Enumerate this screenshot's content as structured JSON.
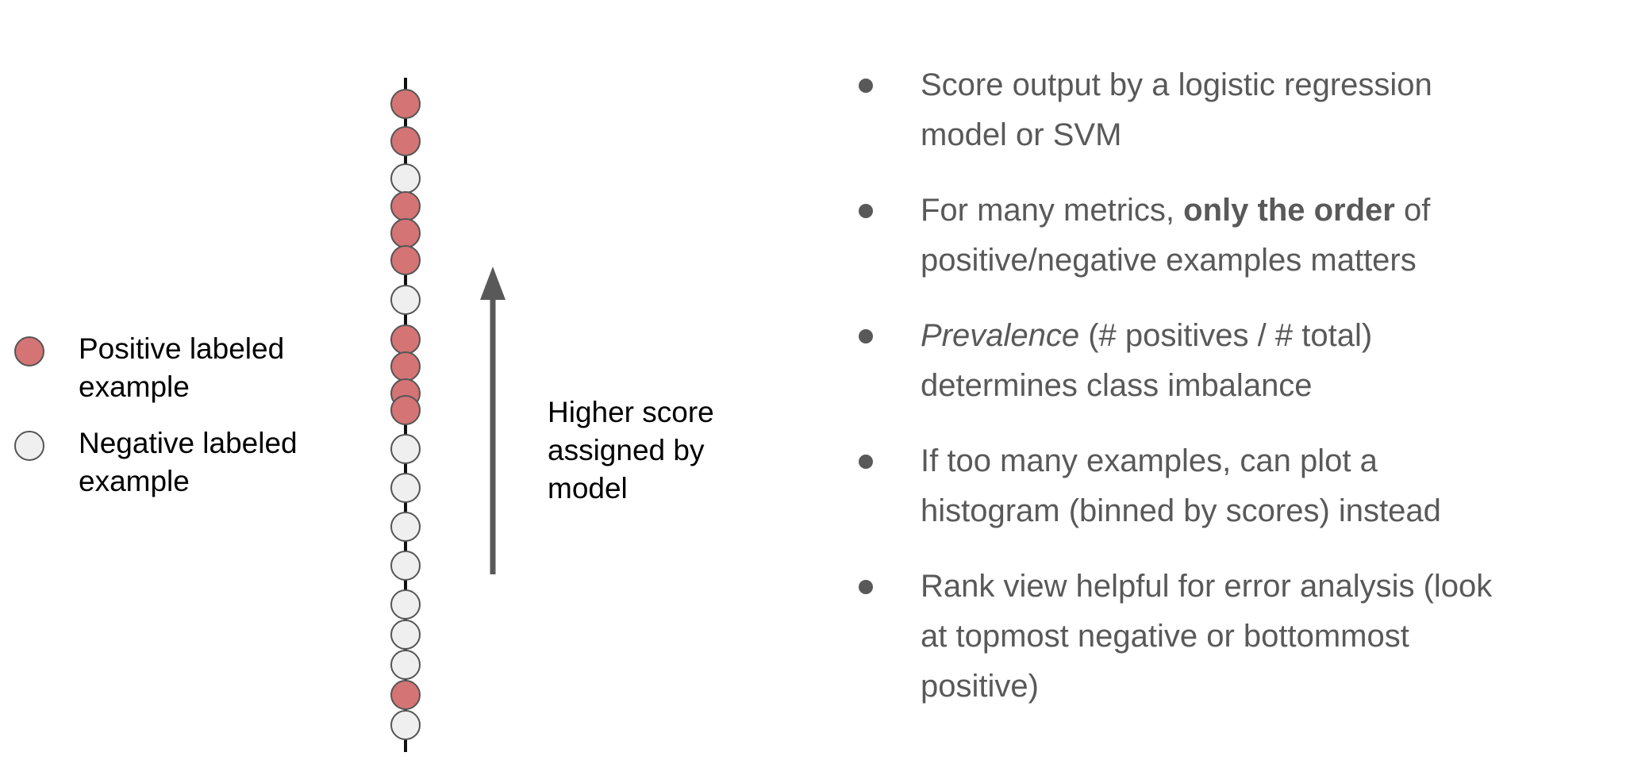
{
  "colors": {
    "positive": "#d47474",
    "negative": "#efefef",
    "stroke": "#555555",
    "arrow": "#595959",
    "text": "#595959"
  },
  "legend": {
    "positive": {
      "line1": "Positive labeled",
      "line2": "example"
    },
    "negative": {
      "line1": "Negative labeled",
      "line2": "example"
    }
  },
  "rank_axis": {
    "order_top_to_bottom": [
      "positive",
      "positive",
      "negative",
      "positive",
      "positive",
      "positive",
      "negative",
      "positive",
      "positive",
      "positive",
      "positive",
      "negative",
      "negative",
      "negative",
      "negative",
      "negative",
      "negative",
      "negative",
      "positive",
      "negative"
    ]
  },
  "score_label": {
    "line1": "Higher score",
    "line2": "assigned by",
    "line3": "model"
  },
  "bullets": [
    {
      "line1": "Score output by a logistic regression",
      "line2": "model or SVM"
    },
    {
      "line1_pre": "For many metrics, ",
      "line1_bold": "only the order",
      "line1_post": " of",
      "line2": "positive/negative examples matters"
    },
    {
      "line1_italic": "Prevalence",
      "line1_post": " (# positives / # total)",
      "line2": "determines class imbalance"
    },
    {
      "line1": "If too many examples, can plot a",
      "line2": "histogram (binned by scores) instead"
    },
    {
      "line1": "Rank view helpful for error analysis (look",
      "line2": "at topmost negative or bottommost",
      "line3": "positive)"
    }
  ]
}
